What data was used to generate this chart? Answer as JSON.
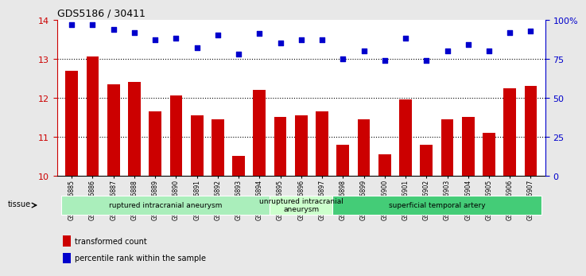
{
  "title": "GDS5186 / 30411",
  "samples": [
    "GSM1306885",
    "GSM1306886",
    "GSM1306887",
    "GSM1306888",
    "GSM1306889",
    "GSM1306890",
    "GSM1306891",
    "GSM1306892",
    "GSM1306893",
    "GSM1306894",
    "GSM1306895",
    "GSM1306896",
    "GSM1306897",
    "GSM1306898",
    "GSM1306899",
    "GSM1306900",
    "GSM1306901",
    "GSM1306902",
    "GSM1306903",
    "GSM1306904",
    "GSM1306905",
    "GSM1306906",
    "GSM1306907"
  ],
  "bar_values": [
    12.7,
    13.05,
    12.35,
    12.4,
    11.65,
    12.05,
    11.55,
    11.45,
    10.5,
    12.2,
    11.5,
    11.55,
    11.65,
    10.8,
    11.45,
    10.55,
    11.95,
    10.8,
    11.45,
    11.5,
    11.1,
    12.25,
    12.3
  ],
  "dot_values_pct": [
    97,
    97,
    94,
    92,
    87,
    88,
    82,
    90,
    78,
    91,
    85,
    87,
    87,
    75,
    80,
    74,
    88,
    74,
    80,
    84,
    80,
    92,
    93
  ],
  "ylim_left": [
    10,
    14
  ],
  "ylim_right": [
    0,
    100
  ],
  "yticks_left": [
    10,
    11,
    12,
    13,
    14
  ],
  "ytick_labels_right": [
    "0",
    "25",
    "50",
    "75",
    "100%"
  ],
  "bar_color": "#cc0000",
  "dot_color": "#0000cc",
  "background_color": "#e8e8e8",
  "plot_bg_color": "#ffffff",
  "groups": [
    {
      "label": "ruptured intracranial aneurysm",
      "start": 0,
      "end": 10,
      "color": "#aaeebb"
    },
    {
      "label": "unruptured intracranial\naneurysm",
      "start": 10,
      "end": 13,
      "color": "#ccffcc"
    },
    {
      "label": "superficial temporal artery",
      "start": 13,
      "end": 23,
      "color": "#44cc77"
    }
  ],
  "legend_bar_label": "transformed count",
  "legend_dot_label": "percentile rank within the sample",
  "tissue_label": "tissue",
  "left_axis_color": "#cc0000",
  "right_axis_color": "#0000cc"
}
